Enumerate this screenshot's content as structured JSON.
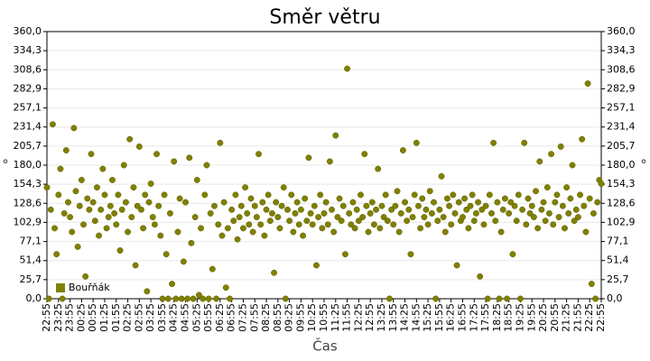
{
  "chart_data": {
    "type": "scatter",
    "title": "Směr větru",
    "x_label": "Čas",
    "y_label": "°",
    "y2_label": "°",
    "legend": "lower-left",
    "grid": true,
    "ylim": [
      0,
      360
    ],
    "yticks": [
      {
        "value": 0,
        "label": "0,0"
      },
      {
        "value": 25.7,
        "label": "25,7"
      },
      {
        "value": 51.4,
        "label": "51,4"
      },
      {
        "value": 77.1,
        "label": "77,1"
      },
      {
        "value": 102.9,
        "label": "102,9"
      },
      {
        "value": 128.6,
        "label": "128,6"
      },
      {
        "value": 154.3,
        "label": "154,3"
      },
      {
        "value": 180,
        "label": "180,0"
      },
      {
        "value": 205.7,
        "label": "205,7"
      },
      {
        "value": 231.4,
        "label": "231,4"
      },
      {
        "value": 257.1,
        "label": "257,1"
      },
      {
        "value": 282.9,
        "label": "282,9"
      },
      {
        "value": 308.6,
        "label": "308,6"
      },
      {
        "value": 334.3,
        "label": "334,3"
      },
      {
        "value": 360,
        "label": "360,0"
      }
    ],
    "xticks": [
      "22:55",
      "23:25",
      "23:55",
      "00:25",
      "00:55",
      "01:25",
      "01:55",
      "02:25",
      "02:55",
      "03:25",
      "03:55",
      "04:25",
      "04:55",
      "05:25",
      "05:55",
      "06:25",
      "06:55",
      "07:25",
      "07:55",
      "08:25",
      "08:55",
      "09:25",
      "09:55",
      "10:25",
      "10:55",
      "11:25",
      "11:55",
      "12:25",
      "12:55",
      "13:25",
      "13:55",
      "14:25",
      "14:55",
      "15:25",
      "15:55",
      "16:25",
      "16:55",
      "17:25",
      "17:55",
      "18:25",
      "18:55",
      "19:25",
      "19:55",
      "20:25",
      "20:55",
      "21:25",
      "21:55",
      "22:25",
      "22:55"
    ],
    "series": [
      {
        "name": "Bouřňák",
        "color": "#808000",
        "values": [
          150,
          0,
          120,
          235,
          95,
          60,
          140,
          175,
          0,
          115,
          200,
          130,
          110,
          90,
          230,
          145,
          70,
          125,
          160,
          100,
          30,
          135,
          120,
          195,
          130,
          105,
          150,
          85,
          120,
          175,
          140,
          95,
          110,
          125,
          160,
          115,
          100,
          140,
          65,
          120,
          180,
          130,
          90,
          215,
          110,
          150,
          45,
          125,
          205,
          120,
          95,
          140,
          10,
          130,
          155,
          110,
          100,
          195,
          125,
          85,
          0,
          140,
          60,
          0,
          115,
          20,
          185,
          0,
          90,
          135,
          0,
          50,
          130,
          0,
          190,
          75,
          0,
          110,
          160,
          5,
          95,
          0,
          140,
          180,
          0,
          115,
          40,
          125,
          0,
          100,
          210,
          85,
          130,
          15,
          95,
          0,
          120,
          105,
          140,
          80,
          110,
          125,
          95,
          150,
          115,
          100,
          135,
          90,
          125,
          110,
          195,
          100,
          130,
          85,
          120,
          140,
          105,
          115,
          35,
          130,
          110,
          95,
          125,
          150,
          0,
          120,
          105,
          140,
          90,
          115,
          130,
          100,
          120,
          85,
          135,
          105,
          190,
          115,
          100,
          125,
          45,
          110,
          140,
          95,
          115,
          130,
          100,
          185,
          120,
          90,
          220,
          110,
          135,
          105,
          125,
          60,
          310,
          115,
          100,
          130,
          95,
          120,
          105,
          140,
          110,
          195,
          125,
          90,
          115,
          130,
          100,
          120,
          175,
          95,
          125,
          110,
          140,
          105,
          0,
          120,
          100,
          125,
          145,
          90,
          115,
          200,
          130,
          105,
          120,
          60,
          110,
          140,
          210,
          125,
          95,
          135,
          110,
          120,
          100,
          145,
          115,
          130,
          0,
          105,
          120,
          165,
          110,
          90,
          135,
          125,
          100,
          140,
          115,
          45,
          130,
          105,
          110,
          135,
          120,
          95,
          125,
          140,
          105,
          115,
          130,
          30,
          120,
          100,
          125,
          0,
          140,
          115,
          210,
          105,
          130,
          0,
          90,
          120,
          135,
          0,
          115,
          130,
          60,
          125,
          105,
          140,
          0,
          120,
          210,
          100,
          135,
          115,
          125,
          110,
          145,
          95,
          185,
          120,
          130,
          105,
          150,
          115,
          195,
          100,
          130,
          140,
          110,
          205,
          125,
          95,
          150,
          115,
          135,
          180,
          105,
          120,
          110,
          140,
          215,
          125,
          90,
          290,
          135,
          20,
          115,
          0,
          130,
          160,
          155
        ]
      }
    ],
    "x": [
      "22:55",
      "23:00",
      "23:05",
      "23:10",
      "23:15",
      "23:20",
      "23:25",
      "23:30",
      "23:35",
      "23:40",
      "23:45",
      "23:50",
      "23:55",
      "00:00",
      "00:05",
      "00:10",
      "00:15",
      "00:20",
      "00:25",
      "00:30",
      "00:35",
      "00:40",
      "00:45",
      "00:50",
      "00:55",
      "01:00",
      "01:05",
      "01:10",
      "01:15",
      "01:20",
      "01:25",
      "01:30",
      "01:35",
      "01:40",
      "01:45",
      "01:50",
      "01:55",
      "02:00",
      "02:05",
      "02:10",
      "02:15",
      "02:20",
      "02:25",
      "02:30",
      "02:35",
      "02:40",
      "02:45",
      "02:50",
      "02:55",
      "03:00",
      "03:05",
      "03:10",
      "03:15",
      "03:20",
      "03:25",
      "03:30",
      "03:35",
      "03:40",
      "03:45",
      "03:50",
      "03:55",
      "04:00",
      "04:05",
      "04:10",
      "04:15",
      "04:20",
      "04:25",
      "04:30",
      "04:35",
      "04:40",
      "04:45",
      "04:50",
      "04:55",
      "05:00",
      "05:05",
      "05:10",
      "05:15",
      "05:20",
      "05:25",
      "05:30",
      "05:35",
      "05:40",
      "05:45",
      "05:50",
      "05:55",
      "06:00",
      "06:05",
      "06:10",
      "06:15",
      "06:20",
      "06:25",
      "06:30",
      "06:35",
      "06:40",
      "06:45",
      "06:50",
      "06:55",
      "07:00",
      "07:05",
      "07:10",
      "07:15",
      "07:20",
      "07:25",
      "07:30",
      "07:35",
      "07:40",
      "07:45",
      "07:50",
      "07:55",
      "08:00",
      "08:05",
      "08:10",
      "08:15",
      "08:20",
      "08:25",
      "08:30",
      "08:35",
      "08:40",
      "08:45",
      "08:50",
      "08:55",
      "09:00",
      "09:05",
      "09:10",
      "09:15",
      "09:20",
      "09:25",
      "09:30",
      "09:35",
      "09:40",
      "09:45",
      "09:50",
      "09:55",
      "10:00",
      "10:05",
      "10:10",
      "10:15",
      "10:20",
      "10:25",
      "10:30",
      "10:35",
      "10:40",
      "10:45",
      "10:50",
      "10:55",
      "11:00",
      "11:05",
      "11:10",
      "11:15",
      "11:20",
      "11:25",
      "11:30",
      "11:35",
      "11:40",
      "11:45",
      "11:50",
      "11:55",
      "12:00",
      "12:05",
      "12:10",
      "12:15",
      "12:20",
      "12:25",
      "12:30",
      "12:35",
      "12:40",
      "12:45",
      "12:50",
      "12:55",
      "13:00",
      "13:05",
      "13:10",
      "13:15",
      "13:20",
      "13:25",
      "13:30",
      "13:35",
      "13:40",
      "13:45",
      "13:50",
      "13:55",
      "14:00",
      "14:05",
      "14:10",
      "14:15",
      "14:20",
      "14:25",
      "14:30",
      "14:35",
      "14:40",
      "14:45",
      "14:50",
      "14:55",
      "15:00",
      "15:05",
      "15:10",
      "15:15",
      "15:20",
      "15:25",
      "15:30",
      "15:35",
      "15:40",
      "15:45",
      "15:50",
      "15:55",
      "16:00",
      "16:05",
      "16:10",
      "16:15",
      "16:20",
      "16:25",
      "16:30",
      "16:35",
      "16:40",
      "16:45",
      "16:50",
      "16:55",
      "17:00",
      "17:05",
      "17:10",
      "17:15",
      "17:20",
      "17:25",
      "17:30",
      "17:35",
      "17:40",
      "17:45",
      "17:50",
      "17:55",
      "18:00",
      "18:05",
      "18:10",
      "18:15",
      "18:20",
      "18:25",
      "18:30",
      "18:35",
      "18:40",
      "18:45",
      "18:50",
      "18:55",
      "19:00",
      "19:05",
      "19:10",
      "19:15",
      "19:20",
      "19:25",
      "19:30",
      "19:35",
      "19:40",
      "19:45",
      "19:50",
      "19:55",
      "20:00",
      "20:05",
      "20:10",
      "20:15",
      "20:20",
      "20:25",
      "20:30",
      "20:35",
      "20:40",
      "20:45",
      "20:50",
      "20:55",
      "21:00",
      "21:05",
      "21:10",
      "21:15",
      "21:20",
      "21:25",
      "21:30",
      "21:35",
      "21:40",
      "21:45",
      "21:50",
      "21:55",
      "22:00",
      "22:05",
      "22:10",
      "22:15",
      "22:20",
      "22:25",
      "22:30",
      "22:35",
      "22:40",
      "22:45",
      "22:50",
      "22:55"
    ]
  }
}
